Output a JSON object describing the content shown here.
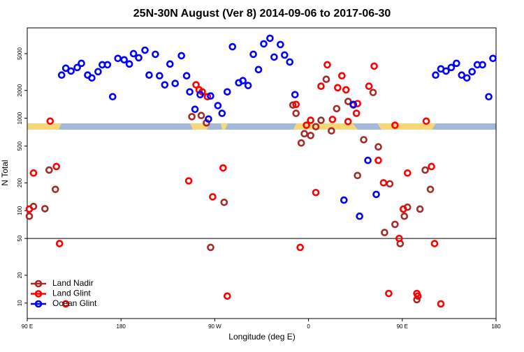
{
  "chart_data": {
    "type": "scatter",
    "title": "25N-30N August (Ver 8)   2014-09-06 to 2017-06-30",
    "x_label": "Longitude (deg E)",
    "y_label": "N Total",
    "log_y": true,
    "legend": "lower left",
    "reference_line": 50,
    "xlim": [
      90,
      540
    ],
    "xticks": [
      {
        "value": 90,
        "label": "90 E"
      },
      {
        "value": 180,
        "label": "180"
      },
      {
        "value": 270,
        "label": "90 W"
      },
      {
        "value": 360,
        "label": "0"
      },
      {
        "value": 450,
        "label": "90 E"
      },
      {
        "value": 540,
        "label": "180"
      }
    ],
    "ylim": [
      6.8,
      9500
    ],
    "yticks": [
      10,
      20,
      50,
      100,
      200,
      500,
      1000,
      2000,
      5000
    ],
    "series": [
      {
        "name": "Land Nadir",
        "color": "#a52a2a",
        "x": [
          92,
          96,
          107,
          111,
          117,
          248,
          257,
          262,
          266,
          279,
          345,
          348,
          353,
          356,
          362,
          367,
          372,
          377,
          382,
          387,
          398,
          403,
          407,
          413,
          422,
          427,
          433,
          438,
          443,
          448,
          452,
          455,
          464,
          467,
          472,
          477
        ],
        "values": [
          87,
          111,
          105,
          275,
          170,
          1040,
          1070,
          890,
          40,
          123,
          1390,
          1130,
          540,
          680,
          650,
          810,
          950,
          2640,
          730,
          1270,
          1520,
          1390,
          240,
          585,
          1900,
          490,
          58,
          195,
          71,
          44,
          87,
          109,
          10.9,
          104,
          275,
          170
        ]
      },
      {
        "name": "Land Glint",
        "color": "#ff0000",
        "x": [
          92,
          96,
          112,
          118,
          121,
          127,
          245,
          252,
          255,
          258,
          263,
          268,
          278,
          282,
          348,
          352,
          358,
          362,
          367,
          372,
          378,
          383,
          388,
          392,
          396,
          398,
          406,
          407,
          418,
          423,
          427,
          432,
          437,
          443,
          447,
          451,
          455,
          464,
          465,
          473,
          478,
          481,
          487
        ],
        "values": [
          104,
          255,
          930,
          300,
          44,
          9.8,
          210,
          2300,
          2030,
          1930,
          1710,
          141,
          290,
          11.9,
          1410,
          40,
          840,
          950,
          157,
          2220,
          3790,
          970,
          2140,
          2880,
          2030,
          920,
          1130,
          1440,
          2220,
          3660,
          350,
          200,
          12.7,
          840,
          50,
          104,
          255,
          12.7,
          11.9,
          930,
          300,
          44,
          9.8
        ]
      },
      {
        "name": "Ocean Glint",
        "color": "#0000ff",
        "x": [
          123,
          127,
          132,
          138,
          142,
          148,
          152,
          158,
          162,
          167,
          172,
          177,
          183,
          188,
          192,
          197,
          203,
          207,
          213,
          217,
          222,
          227,
          232,
          238,
          243,
          246,
          251,
          256,
          264,
          266,
          273,
          277,
          282,
          287,
          293,
          297,
          302,
          307,
          312,
          317,
          323,
          327,
          333,
          337,
          342,
          347,
          394,
          403,
          409,
          417,
          425,
          482,
          487,
          492,
          497,
          502,
          507,
          512,
          517,
          522,
          527,
          533,
          537
        ],
        "values": [
          2930,
          3480,
          3240,
          3540,
          3930,
          2930,
          2730,
          3190,
          3790,
          3790,
          1710,
          4440,
          4290,
          3860,
          5000,
          4510,
          5450,
          2930,
          4920,
          2880,
          2300,
          3860,
          2380,
          4750,
          2880,
          1930,
          1250,
          1800,
          980,
          1740,
          1370,
          1130,
          1930,
          5940,
          2420,
          2550,
          2260,
          4920,
          3360,
          6380,
          7330,
          4590,
          6270,
          4830,
          4060,
          1800,
          130,
          1410,
          87,
          350,
          150,
          2930,
          3420,
          3240,
          3540,
          3930,
          2930,
          2730,
          3190,
          3790,
          3790,
          1710,
          4440
        ]
      }
    ]
  }
}
